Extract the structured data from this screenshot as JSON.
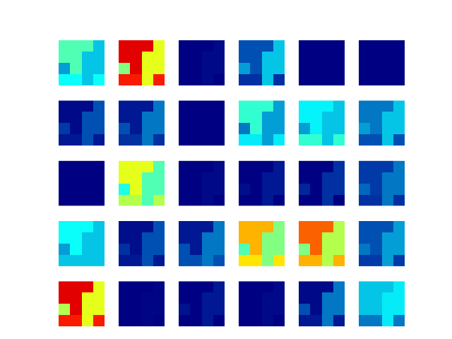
{
  "chart_data": {
    "type": "heatmap",
    "color": "jet",
    "zlim": [
      0,
      1
    ],
    "tick_labels": false,
    "cells": [
      [
        [
          0.45,
          0.45,
          0.45,
          0.3
        ],
        [
          0.45,
          0.45,
          0.3,
          0.3
        ],
        [
          0.25,
          0.45,
          0.3,
          0.3
        ],
        [
          0.38,
          0.38,
          0.3,
          0.38
        ]
      ],
      [
        [
          0.9,
          0.9,
          0.9,
          0.6
        ],
        [
          0.9,
          0.9,
          0.6,
          0.6
        ],
        [
          0.5,
          0.9,
          0.6,
          0.6
        ],
        [
          0.85,
          0.85,
          0.6,
          0.85
        ]
      ],
      [
        [
          0,
          0,
          0,
          0.02
        ],
        [
          0,
          0,
          0.02,
          0.02
        ],
        [
          0,
          0,
          0.02,
          0.02
        ],
        [
          0,
          0,
          0.02,
          0
        ]
      ],
      [
        [
          0.15,
          0.15,
          0.15,
          0.3
        ],
        [
          0.15,
          0.15,
          0.3,
          0.3
        ],
        [
          0.25,
          0.15,
          0.3,
          0.3
        ],
        [
          0.1,
          0.1,
          0.3,
          0.1
        ]
      ],
      [
        [
          0,
          0,
          0,
          0
        ],
        [
          0,
          0,
          0,
          0
        ],
        [
          0,
          0,
          0,
          0
        ],
        [
          0,
          0,
          0,
          0
        ]
      ],
      [
        [
          0,
          0,
          0,
          0
        ],
        [
          0,
          0,
          0,
          0
        ],
        [
          0,
          0,
          0,
          0
        ],
        [
          0,
          0,
          0,
          0
        ]
      ],
      [
        [
          0.02,
          0.02,
          0.02,
          0.15
        ],
        [
          0.02,
          0.02,
          0.15,
          0.15
        ],
        [
          0.12,
          0.02,
          0.15,
          0.15
        ],
        [
          0.05,
          0.05,
          0.15,
          0.05
        ]
      ],
      [
        [
          0.05,
          0.05,
          0.05,
          0.2
        ],
        [
          0.05,
          0.05,
          0.2,
          0.2
        ],
        [
          0.15,
          0.05,
          0.2,
          0.2
        ],
        [
          0.1,
          0.1,
          0.2,
          0.1
        ]
      ],
      [
        [
          0,
          0,
          0,
          0
        ],
        [
          0,
          0,
          0,
          0
        ],
        [
          0,
          0,
          0,
          0
        ],
        [
          0,
          0,
          0,
          0
        ]
      ],
      [
        [
          0.42,
          0.42,
          0.42,
          0.25
        ],
        [
          0.42,
          0.42,
          0.25,
          0.25
        ],
        [
          0.2,
          0.42,
          0.25,
          0.25
        ],
        [
          0.35,
          0.35,
          0.25,
          0.35
        ]
      ],
      [
        [
          0.36,
          0.36,
          0.36,
          0.3
        ],
        [
          0.36,
          0.36,
          0.3,
          0.3
        ],
        [
          0.25,
          0.36,
          0.3,
          0.3
        ],
        [
          0.42,
          0.42,
          0.3,
          0.42
        ]
      ],
      [
        [
          0.2,
          0.2,
          0.2,
          0.3
        ],
        [
          0.2,
          0.2,
          0.3,
          0.3
        ],
        [
          0.25,
          0.2,
          0.3,
          0.3
        ],
        [
          0.15,
          0.15,
          0.3,
          0.15
        ]
      ],
      [
        [
          0,
          0,
          0,
          0
        ],
        [
          0,
          0,
          0,
          0
        ],
        [
          0,
          0,
          0,
          0
        ],
        [
          0,
          0,
          0,
          0
        ]
      ],
      [
        [
          0.6,
          0.6,
          0.6,
          0.45
        ],
        [
          0.6,
          0.6,
          0.45,
          0.45
        ],
        [
          0.4,
          0.6,
          0.45,
          0.45
        ],
        [
          0.55,
          0.55,
          0.45,
          0.55
        ]
      ],
      [
        [
          0,
          0,
          0,
          0.02
        ],
        [
          0,
          0,
          0.02,
          0.02
        ],
        [
          0,
          0,
          0.02,
          0.02
        ],
        [
          0,
          0,
          0.02,
          0
        ]
      ],
      [
        [
          0,
          0,
          0,
          0.05
        ],
        [
          0,
          0,
          0.05,
          0.05
        ],
        [
          0.03,
          0,
          0.05,
          0.05
        ],
        [
          0,
          0,
          0.05,
          0
        ]
      ],
      [
        [
          0,
          0,
          0,
          0.1
        ],
        [
          0,
          0,
          0.1,
          0.1
        ],
        [
          0.08,
          0,
          0.1,
          0.1
        ],
        [
          0,
          0,
          0.1,
          0
        ]
      ],
      [
        [
          0.12,
          0.12,
          0.12,
          0.2
        ],
        [
          0.12,
          0.12,
          0.2,
          0.2
        ],
        [
          0.18,
          0.12,
          0.2,
          0.2
        ],
        [
          0.1,
          0.1,
          0.2,
          0.1
        ]
      ],
      [
        [
          0.38,
          0.38,
          0.38,
          0.3
        ],
        [
          0.38,
          0.38,
          0.3,
          0.3
        ],
        [
          0.25,
          0.38,
          0.3,
          0.3
        ],
        [
          0.3,
          0.3,
          0.3,
          0.3
        ]
      ],
      [
        [
          0.03,
          0.03,
          0.03,
          0.15
        ],
        [
          0.03,
          0.03,
          0.15,
          0.15
        ],
        [
          0.1,
          0.03,
          0.15,
          0.15
        ],
        [
          0.05,
          0.05,
          0.15,
          0.05
        ]
      ],
      [
        [
          0.05,
          0.05,
          0.05,
          0.2
        ],
        [
          0.05,
          0.05,
          0.2,
          0.2
        ],
        [
          0.15,
          0.05,
          0.2,
          0.2
        ],
        [
          0.15,
          0.15,
          0.2,
          0.15
        ]
      ],
      [
        [
          0.7,
          0.7,
          0.7,
          0.5
        ],
        [
          0.7,
          0.7,
          0.5,
          0.5
        ],
        [
          0.45,
          0.7,
          0.5,
          0.5
        ],
        [
          0.65,
          0.65,
          0.5,
          0.65
        ]
      ],
      [
        [
          0.78,
          0.78,
          0.78,
          0.55
        ],
        [
          0.78,
          0.78,
          0.55,
          0.55
        ],
        [
          0.5,
          0.78,
          0.55,
          0.55
        ],
        [
          0.7,
          0.7,
          0.55,
          0.7
        ]
      ],
      [
        [
          0.15,
          0.15,
          0.15,
          0.25
        ],
        [
          0.15,
          0.15,
          0.25,
          0.25
        ],
        [
          0.2,
          0.15,
          0.25,
          0.25
        ],
        [
          0.12,
          0.12,
          0.25,
          0.12
        ]
      ],
      [
        [
          0.9,
          0.9,
          0.9,
          0.6
        ],
        [
          0.9,
          0.9,
          0.6,
          0.6
        ],
        [
          0.55,
          0.9,
          0.6,
          0.6
        ],
        [
          0.85,
          0.85,
          0.6,
          0.85
        ]
      ],
      [
        [
          0,
          0,
          0,
          0.01
        ],
        [
          0,
          0,
          0.01,
          0.01
        ],
        [
          0,
          0,
          0.01,
          0.01
        ],
        [
          0,
          0,
          0.01,
          0
        ]
      ],
      [
        [
          0,
          0,
          0,
          0.05
        ],
        [
          0,
          0,
          0.05,
          0.05
        ],
        [
          0.04,
          0,
          0.05,
          0.05
        ],
        [
          0,
          0,
          0.05,
          0
        ]
      ],
      [
        [
          0,
          0,
          0,
          0.02
        ],
        [
          0,
          0,
          0.02,
          0.02
        ],
        [
          0,
          0,
          0.02,
          0.02
        ],
        [
          0,
          0,
          0.02,
          0
        ]
      ],
      [
        [
          0.02,
          0.02,
          0.02,
          0.2
        ],
        [
          0.02,
          0.02,
          0.2,
          0.2
        ],
        [
          0.15,
          0.02,
          0.2,
          0.2
        ],
        [
          0.05,
          0.05,
          0.2,
          0.05
        ]
      ],
      [
        [
          0.3,
          0.3,
          0.3,
          0.35
        ],
        [
          0.3,
          0.3,
          0.35,
          0.35
        ],
        [
          0.3,
          0.3,
          0.35,
          0.35
        ],
        [
          0.2,
          0.2,
          0.35,
          0.2
        ]
      ]
    ]
  }
}
